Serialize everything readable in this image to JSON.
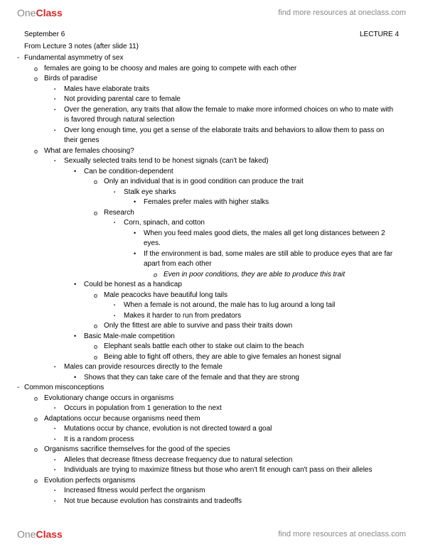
{
  "brand": {
    "part1": "One",
    "part2": "Class"
  },
  "header_link": "find more resources at oneclass.com",
  "footer_link": "find more resources at oneclass.com",
  "date": "September 6",
  "lecture": "LECTURE 4",
  "from_line": "From Lecture 3 notes (after slide 11)",
  "s1": {
    "title": "Fundamental asymmetry of sex",
    "a": "females are going to be choosy and males are going to compete with each other",
    "b": {
      "title": "Birds of paradise",
      "i": "Males have elaborate traits",
      "ii": "Not providing parental care to female",
      "iii": "Over the generation, any traits that allow the female to make more informed choices on who to mate with is favored through natural selection",
      "iv": "Over long enough time, you get a sense of the elaborate traits and behaviors to allow them to pass on their genes"
    },
    "c": {
      "title": "What are females choosing?",
      "i": {
        "title": "Sexually selected traits tend to be honest signals (can't be faked)",
        "a": {
          "title": "Can be condition-dependent",
          "x": {
            "title": "Only an individual that is in good condition can produce the trait",
            "y": "Stalk eye sharks",
            "z": "Females prefer males with higher stalks"
          },
          "r": {
            "title": "Research",
            "c": "Corn, spinach, and cotton",
            "d1": "When you feed males good diets, the males all get long distances between 2 eyes.",
            "d2": "If the environment is bad, some males are still able to produce eyes that are far apart from each other",
            "d3": "Even in poor conditions, they are able to produce this trait"
          }
        },
        "b": {
          "title": "Could be honest as a handicap",
          "p": "Male peacocks have beautiful long tails",
          "p1": "When a female is not around, the male has to lug around a long tail",
          "p2": "Makes it harder to run from predators",
          "p3": "Only the fittest are able to survive and pass their traits down"
        },
        "c2": {
          "title": "Basic Male-male competition",
          "e1": "Elephant seals battle each other to stake out claim to the beach",
          "e2": "Being able to fight off others, they are able to give females an honest signal"
        }
      },
      "ii": {
        "title": "Males can provide resources directly to the female",
        "a": "Shows that they can take care of the female and that they are strong"
      }
    }
  },
  "s2": {
    "title": "Common misconceptions",
    "a": {
      "title": "Evolutionary change occurs in organisms",
      "i": "Occurs in population from 1 generation to the next"
    },
    "b": {
      "title": "Adaptations occur because organisms need them",
      "i": "Mutations occur by chance, evolution is not directed toward a goal",
      "ii": "It is a random process"
    },
    "c": {
      "title": "Organisms sacrifice themselves for the good of the species",
      "i": "Alleles that decrease fitness decrease frequency due to natural selection",
      "ii": "Individuals are trying to maximize fitness but those who aren't fit enough can't pass on their alleles"
    },
    "d": {
      "title": "Evolution perfects organisms",
      "i": "Increased fitness would perfect the organism",
      "ii": "Not true because evolution has constraints and tradeoffs"
    }
  }
}
